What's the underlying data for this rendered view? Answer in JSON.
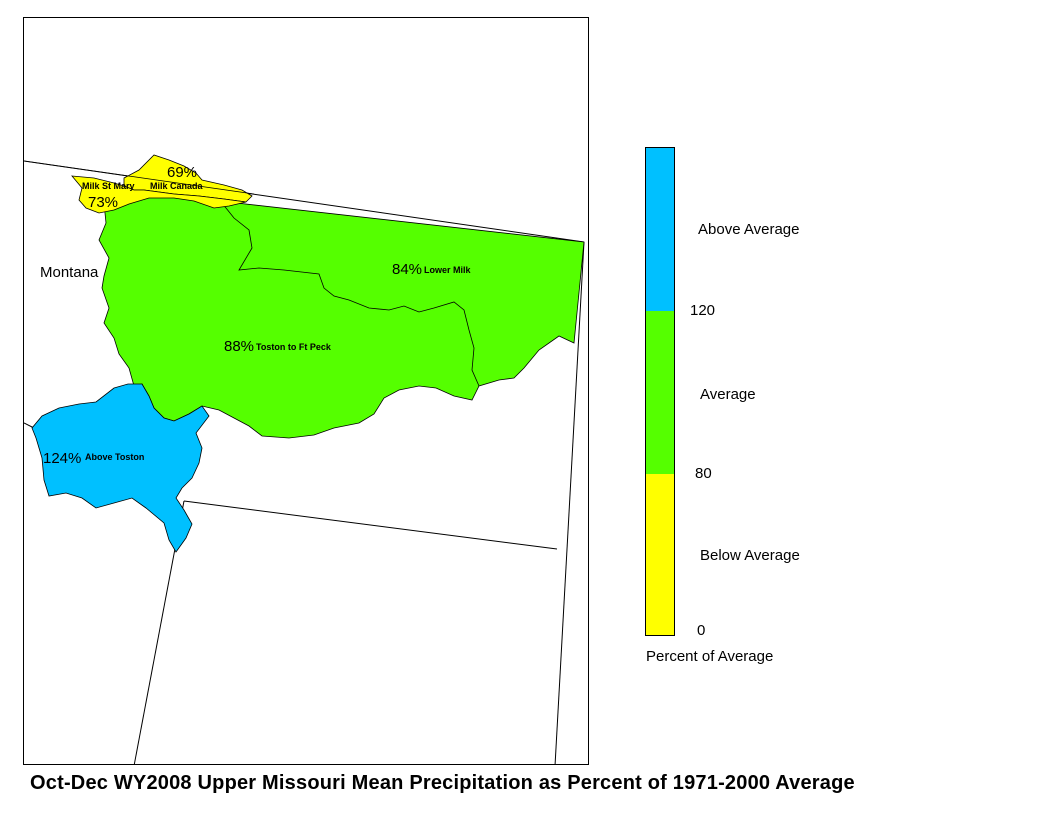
{
  "map": {
    "state_label": "Montana",
    "basins": [
      {
        "name": "Milk St Mary",
        "percent": "73%",
        "category": "below"
      },
      {
        "name": "Milk Canada",
        "percent": "69%",
        "category": "below"
      },
      {
        "name": "Lower Milk",
        "percent": "84%",
        "category": "average"
      },
      {
        "name": "Toston to Ft Peck",
        "percent": "88%",
        "category": "average"
      },
      {
        "name": "Above Toston",
        "percent": "124%",
        "category": "above"
      }
    ]
  },
  "legend": {
    "colors": {
      "above": "#00c0ff",
      "average": "#55ff00",
      "below": "#ffff00"
    },
    "categories": {
      "above": "Above Average",
      "average": "Average",
      "below": "Below Average"
    },
    "ticks": {
      "upper": "120",
      "lower": "80",
      "zero": "0"
    },
    "caption": "Percent of Average"
  },
  "title": "Oct-Dec WY2008 Upper Missouri Mean Precipitation as Percent of 1971-2000 Average"
}
